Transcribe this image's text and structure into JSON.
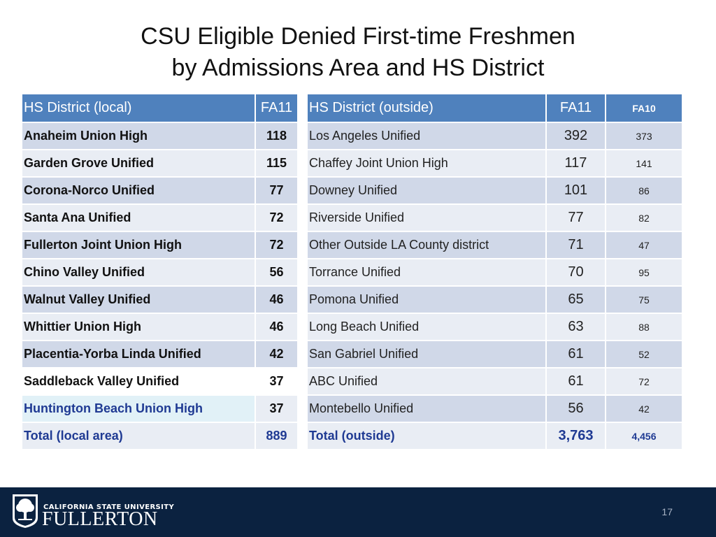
{
  "title": {
    "line1": "CSU Eligible Denied First-time Freshmen",
    "line2": "by Admissions Area and HS District"
  },
  "local": {
    "headers": {
      "district": "HS District (local)",
      "fa11": "FA11"
    },
    "rows": [
      {
        "district": "Anaheim Union High",
        "fa11": "118"
      },
      {
        "district": "Garden Grove Unified",
        "fa11": "115"
      },
      {
        "district": "Corona-Norco Unified",
        "fa11": "77"
      },
      {
        "district": "Santa Ana Unified",
        "fa11": "72"
      },
      {
        "district": "Fullerton Joint Union High",
        "fa11": "72"
      },
      {
        "district": "Chino Valley Unified",
        "fa11": "56"
      },
      {
        "district": "Walnut Valley Unified",
        "fa11": "46"
      },
      {
        "district": "Whittier Union High",
        "fa11": "46"
      },
      {
        "district": "Placentia-Yorba Linda Unified",
        "fa11": "42"
      },
      {
        "district": "Saddleback Valley Unified",
        "fa11": "37"
      },
      {
        "district": "Huntington Beach Union High",
        "fa11": "37"
      },
      {
        "district": "Total (local area)",
        "fa11": "889"
      }
    ]
  },
  "outside": {
    "headers": {
      "district": "HS District (outside)",
      "fa11": "FA11",
      "fa10": "FA10"
    },
    "rows": [
      {
        "district": "Los Angeles Unified",
        "fa11": "392",
        "fa10": "373"
      },
      {
        "district": "Chaffey Joint Union High",
        "fa11": "117",
        "fa10": "141"
      },
      {
        "district": "Downey Unified",
        "fa11": "101",
        "fa10": "86"
      },
      {
        "district": "Riverside Unified",
        "fa11": "77",
        "fa10": "82"
      },
      {
        "district": "Other Outside LA County district",
        "fa11": "71",
        "fa10": "47"
      },
      {
        "district": "Torrance Unified",
        "fa11": "70",
        "fa10": "95"
      },
      {
        "district": "Pomona Unified",
        "fa11": "65",
        "fa10": "75"
      },
      {
        "district": "Long Beach Unified",
        "fa11": "63",
        "fa10": "88"
      },
      {
        "district": "San Gabriel Unified",
        "fa11": "61",
        "fa10": "52"
      },
      {
        "district": "ABC Unified",
        "fa11": "61",
        "fa10": "72"
      },
      {
        "district": "Montebello Unified",
        "fa11": "56",
        "fa10": "42"
      },
      {
        "district": "Total (outside)",
        "fa11": "3,763",
        "fa10": "4,456"
      }
    ]
  },
  "footer": {
    "university_line": "CALIFORNIA STATE UNIVERSITY",
    "campus": "FULLERTON",
    "page_number": "17",
    "logo_icon": "campus-tree-logo-icon"
  },
  "colors": {
    "header_bg": "#4f81bd",
    "row_dark": "#d0d8e8",
    "row_light": "#e9edf4",
    "total_text": "#1f3a93",
    "footer_bg": "#0b2240"
  }
}
